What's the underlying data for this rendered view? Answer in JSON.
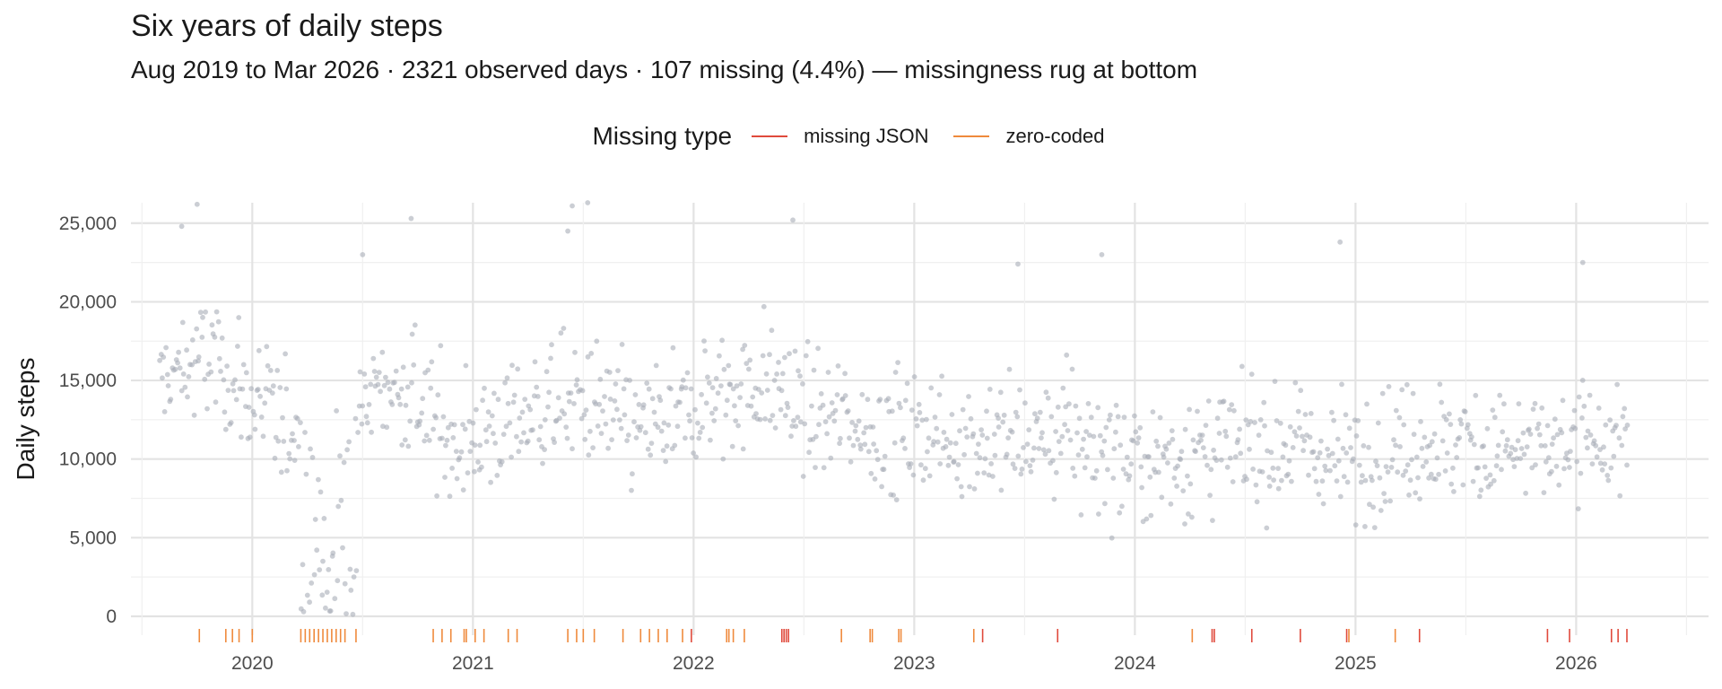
{
  "chart_data": {
    "type": "scatter",
    "title": "Six years of daily steps",
    "subtitle": "Aug 2019 to Mar 2026 · 2321 observed days · 107 missing (4.4%) — missingness rug at bottom",
    "xlabel": "",
    "ylabel": "Daily steps",
    "xlim": [
      2019.45,
      2026.6
    ],
    "ylim": [
      -1200,
      26300
    ],
    "x_ticks": [
      2020,
      2021,
      2022,
      2023,
      2024,
      2025,
      2026
    ],
    "x_tick_labels": [
      "2020",
      "2021",
      "2022",
      "2023",
      "2024",
      "2025",
      "2026"
    ],
    "y_ticks": [
      0,
      5000,
      10000,
      15000,
      20000,
      25000
    ],
    "y_tick_labels": [
      "0",
      "5,000",
      "10,000",
      "15,000",
      "20,000",
      "25,000"
    ],
    "grid": true,
    "legend": {
      "title": "Missing type",
      "position": "top-center",
      "items": [
        {
          "label": "missing JSON",
          "color": "#e04a3c"
        },
        {
          "label": "zero-coded",
          "color": "#ef8a3c"
        }
      ]
    },
    "point_color": "#a9adb7",
    "points_note": "2321 daily observations in the original; representative trend points listed (date as decimal year, steps)",
    "trend": [
      {
        "x": 2019.6,
        "y": 15000
      },
      {
        "x": 2019.8,
        "y": 16500
      },
      {
        "x": 2020.0,
        "y": 13500
      },
      {
        "x": 2020.2,
        "y": 12000
      },
      {
        "x": 2020.35,
        "y": 6000
      },
      {
        "x": 2020.5,
        "y": 14000
      },
      {
        "x": 2020.7,
        "y": 14500
      },
      {
        "x": 2020.9,
        "y": 11000
      },
      {
        "x": 2021.1,
        "y": 12000
      },
      {
        "x": 2021.3,
        "y": 13000
      },
      {
        "x": 2021.5,
        "y": 13500
      },
      {
        "x": 2021.7,
        "y": 12000
      },
      {
        "x": 2021.9,
        "y": 12000
      },
      {
        "x": 2022.1,
        "y": 14000
      },
      {
        "x": 2022.3,
        "y": 15000
      },
      {
        "x": 2022.5,
        "y": 13000
      },
      {
        "x": 2022.7,
        "y": 12500
      },
      {
        "x": 2022.9,
        "y": 11500
      },
      {
        "x": 2023.1,
        "y": 11500
      },
      {
        "x": 2023.3,
        "y": 11000
      },
      {
        "x": 2023.5,
        "y": 11500
      },
      {
        "x": 2023.7,
        "y": 11500
      },
      {
        "x": 2023.9,
        "y": 10500
      },
      {
        "x": 2024.1,
        "y": 10000
      },
      {
        "x": 2024.3,
        "y": 10500
      },
      {
        "x": 2024.5,
        "y": 10500
      },
      {
        "x": 2024.7,
        "y": 11000
      },
      {
        "x": 2024.9,
        "y": 10000
      },
      {
        "x": 2025.1,
        "y": 10500
      },
      {
        "x": 2025.3,
        "y": 11000
      },
      {
        "x": 2025.5,
        "y": 11000
      },
      {
        "x": 2025.7,
        "y": 10500
      },
      {
        "x": 2025.9,
        "y": 10500
      },
      {
        "x": 2026.05,
        "y": 11000
      },
      {
        "x": 2026.2,
        "y": 11500
      }
    ],
    "outliers": [
      {
        "x": 2019.75,
        "y": 26200
      },
      {
        "x": 2019.68,
        "y": 24800
      },
      {
        "x": 2020.72,
        "y": 25300
      },
      {
        "x": 2021.45,
        "y": 26100
      },
      {
        "x": 2021.52,
        "y": 26300
      },
      {
        "x": 2021.43,
        "y": 24500
      },
      {
        "x": 2022.45,
        "y": 25200
      },
      {
        "x": 2024.93,
        "y": 23800
      },
      {
        "x": 2026.03,
        "y": 22500
      },
      {
        "x": 2023.47,
        "y": 22400
      },
      {
        "x": 2023.85,
        "y": 23000
      },
      {
        "x": 2020.5,
        "y": 23000
      }
    ],
    "low_cluster": {
      "x_range": [
        2020.22,
        2020.48
      ],
      "y_range": [
        0,
        4500
      ]
    },
    "missing_days": [
      {
        "date": 2019.76,
        "type": "zero-coded"
      },
      {
        "date": 2019.88,
        "type": "zero-coded"
      },
      {
        "date": 2019.91,
        "type": "zero-coded"
      },
      {
        "date": 2019.94,
        "type": "zero-coded"
      },
      {
        "date": 2020.0,
        "type": "zero-coded"
      },
      {
        "date": 2020.22,
        "type": "zero-coded"
      },
      {
        "date": 2020.24,
        "type": "zero-coded"
      },
      {
        "date": 2020.26,
        "type": "zero-coded"
      },
      {
        "date": 2020.28,
        "type": "zero-coded"
      },
      {
        "date": 2020.3,
        "type": "zero-coded"
      },
      {
        "date": 2020.32,
        "type": "zero-coded"
      },
      {
        "date": 2020.34,
        "type": "zero-coded"
      },
      {
        "date": 2020.36,
        "type": "zero-coded"
      },
      {
        "date": 2020.38,
        "type": "zero-coded"
      },
      {
        "date": 2020.4,
        "type": "zero-coded"
      },
      {
        "date": 2020.42,
        "type": "zero-coded"
      },
      {
        "date": 2020.47,
        "type": "zero-coded"
      },
      {
        "date": 2020.82,
        "type": "zero-coded"
      },
      {
        "date": 2020.86,
        "type": "zero-coded"
      },
      {
        "date": 2020.9,
        "type": "zero-coded"
      },
      {
        "date": 2020.96,
        "type": "zero-coded"
      },
      {
        "date": 2020.97,
        "type": "zero-coded"
      },
      {
        "date": 2021.01,
        "type": "zero-coded"
      },
      {
        "date": 2021.05,
        "type": "zero-coded"
      },
      {
        "date": 2021.16,
        "type": "zero-coded"
      },
      {
        "date": 2021.2,
        "type": "zero-coded"
      },
      {
        "date": 2021.43,
        "type": "zero-coded"
      },
      {
        "date": 2021.47,
        "type": "zero-coded"
      },
      {
        "date": 2021.5,
        "type": "zero-coded"
      },
      {
        "date": 2021.55,
        "type": "zero-coded"
      },
      {
        "date": 2021.68,
        "type": "zero-coded"
      },
      {
        "date": 2021.76,
        "type": "zero-coded"
      },
      {
        "date": 2021.8,
        "type": "zero-coded"
      },
      {
        "date": 2021.84,
        "type": "zero-coded"
      },
      {
        "date": 2021.88,
        "type": "zero-coded"
      },
      {
        "date": 2021.95,
        "type": "zero-coded"
      },
      {
        "date": 2021.99,
        "type": "missing JSON"
      },
      {
        "date": 2022.15,
        "type": "zero-coded"
      },
      {
        "date": 2022.16,
        "type": "zero-coded"
      },
      {
        "date": 2022.18,
        "type": "zero-coded"
      },
      {
        "date": 2022.23,
        "type": "zero-coded"
      },
      {
        "date": 2022.4,
        "type": "missing JSON"
      },
      {
        "date": 2022.41,
        "type": "missing JSON"
      },
      {
        "date": 2022.42,
        "type": "missing JSON"
      },
      {
        "date": 2022.43,
        "type": "missing JSON"
      },
      {
        "date": 2022.67,
        "type": "zero-coded"
      },
      {
        "date": 2022.8,
        "type": "zero-coded"
      },
      {
        "date": 2022.81,
        "type": "zero-coded"
      },
      {
        "date": 2022.93,
        "type": "zero-coded"
      },
      {
        "date": 2022.94,
        "type": "zero-coded"
      },
      {
        "date": 2023.27,
        "type": "zero-coded"
      },
      {
        "date": 2023.31,
        "type": "missing JSON"
      },
      {
        "date": 2023.65,
        "type": "missing JSON"
      },
      {
        "date": 2024.26,
        "type": "zero-coded"
      },
      {
        "date": 2024.35,
        "type": "missing JSON"
      },
      {
        "date": 2024.36,
        "type": "missing JSON"
      },
      {
        "date": 2024.53,
        "type": "missing JSON"
      },
      {
        "date": 2024.75,
        "type": "missing JSON"
      },
      {
        "date": 2024.96,
        "type": "missing JSON"
      },
      {
        "date": 2024.97,
        "type": "zero-coded"
      },
      {
        "date": 2025.18,
        "type": "zero-coded"
      },
      {
        "date": 2025.29,
        "type": "missing JSON"
      },
      {
        "date": 2025.87,
        "type": "missing JSON"
      },
      {
        "date": 2025.97,
        "type": "missing JSON"
      },
      {
        "date": 2026.16,
        "type": "missing JSON"
      },
      {
        "date": 2026.19,
        "type": "missing JSON"
      },
      {
        "date": 2026.23,
        "type": "missing JSON"
      }
    ]
  }
}
